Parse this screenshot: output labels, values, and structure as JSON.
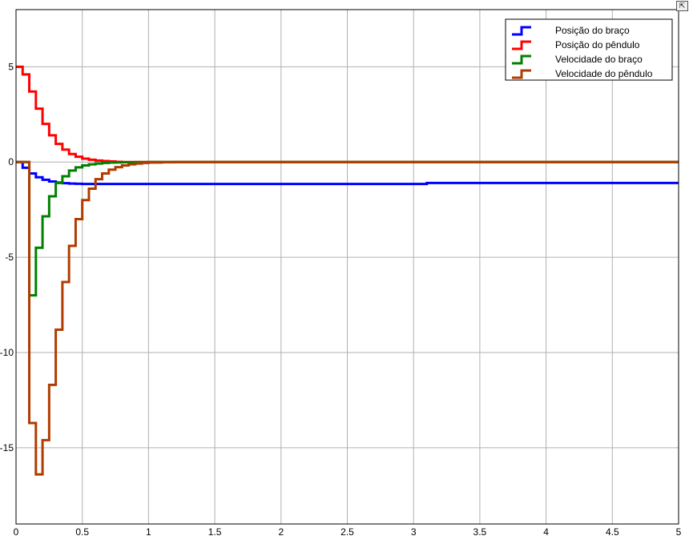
{
  "toolbar": {
    "restore_icon": "restore-axes-icon",
    "restore_glyph": "⇱"
  },
  "chart_data": {
    "type": "line",
    "title": "",
    "xlabel": "",
    "ylabel": "",
    "xlim": [
      0,
      5
    ],
    "ylim": [
      -19,
      8
    ],
    "xticks": [
      0,
      0.5,
      1,
      1.5,
      2,
      2.5,
      3,
      3.5,
      4,
      4.5,
      5
    ],
    "xtick_labels": [
      "0",
      "0.5",
      "1",
      "1.5",
      "2",
      "2.5",
      "3",
      "3.5",
      "4",
      "4.5",
      "5"
    ],
    "yticks": [
      5,
      0,
      -5,
      -10,
      -15
    ],
    "ytick_labels": [
      "5",
      "0",
      "-5",
      "-10",
      "-15"
    ],
    "grid": true,
    "legend_position": "top-right",
    "step": true,
    "series": [
      {
        "name": "Posição do braço",
        "color": "#0000ff",
        "x": [
          0,
          0.05,
          0.1,
          0.15,
          0.2,
          0.25,
          0.3,
          0.35,
          0.4,
          0.45,
          0.5,
          3.1
        ],
        "y": [
          0,
          -0.3,
          -0.6,
          -0.8,
          -0.93,
          -1.02,
          -1.08,
          -1.11,
          -1.13,
          -1.14,
          -1.15,
          -1.1
        ]
      },
      {
        "name": "Posição do pêndulo",
        "color": "#ff0000",
        "x": [
          0,
          0.05,
          0.1,
          0.15,
          0.2,
          0.25,
          0.3,
          0.35,
          0.4,
          0.45,
          0.5,
          0.55,
          0.6,
          0.65,
          0.7,
          0.75,
          0.8
        ],
        "y": [
          5,
          4.6,
          3.7,
          2.8,
          2.0,
          1.4,
          0.95,
          0.65,
          0.42,
          0.28,
          0.18,
          0.12,
          0.08,
          0.05,
          0.03,
          0.01,
          0
        ]
      },
      {
        "name": "Velocidade do braço",
        "color": "#008000",
        "x": [
          0,
          0.1,
          0.15,
          0.2,
          0.25,
          0.3,
          0.35,
          0.4,
          0.45,
          0.5,
          0.55,
          0.6,
          0.65,
          0.7,
          0.75,
          0.8,
          0.9,
          1.0,
          1.1
        ],
        "y": [
          0,
          -7.0,
          -4.5,
          -2.85,
          -1.8,
          -1.1,
          -0.75,
          -0.45,
          -0.28,
          -0.18,
          -0.12,
          -0.08,
          -0.05,
          -0.03,
          -0.02,
          -0.01,
          -0.005,
          0,
          0
        ]
      },
      {
        "name": "Velocidade do pêndulo",
        "color": "#b03c00",
        "x": [
          0,
          0.1,
          0.15,
          0.2,
          0.25,
          0.3,
          0.35,
          0.4,
          0.45,
          0.5,
          0.55,
          0.6,
          0.65,
          0.7,
          0.75,
          0.8,
          0.85,
          0.9,
          0.95,
          1.0,
          1.1,
          1.2
        ],
        "y": [
          0,
          -13.7,
          -16.4,
          -14.6,
          -11.7,
          -8.8,
          -6.3,
          -4.4,
          -3.0,
          -2.0,
          -1.4,
          -0.9,
          -0.6,
          -0.4,
          -0.27,
          -0.18,
          -0.12,
          -0.08,
          -0.05,
          -0.03,
          -0.01,
          0
        ]
      }
    ]
  }
}
